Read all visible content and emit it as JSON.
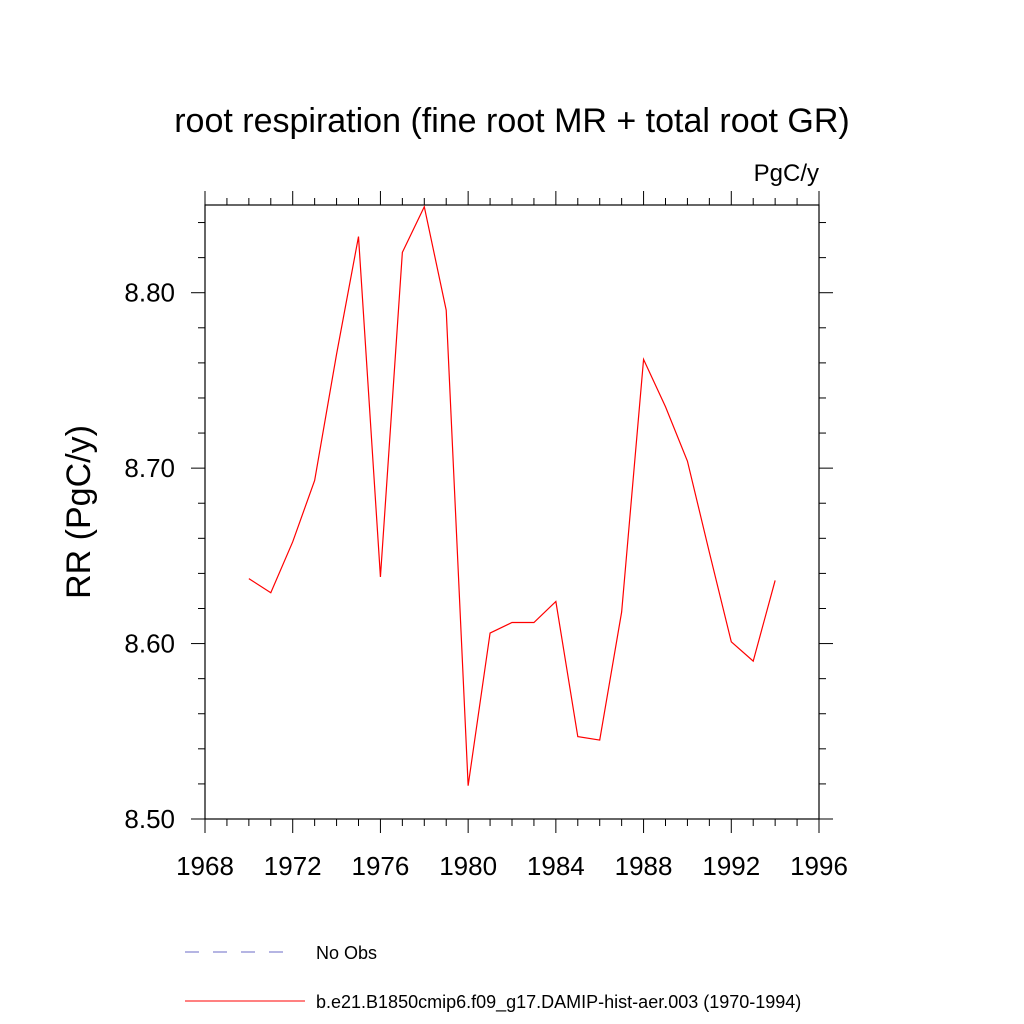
{
  "chart_data": {
    "type": "line",
    "title": "root respiration (fine root MR + total root GR)",
    "units_label": "PgC/y",
    "ylabel": "RR  (PgC/y)",
    "xlabel": "",
    "xlim": [
      1968,
      1996
    ],
    "ylim": [
      8.5,
      8.85
    ],
    "x_ticks": [
      1968,
      1972,
      1976,
      1980,
      1984,
      1988,
      1992,
      1996
    ],
    "x_tick_labels": [
      "1968",
      "1972",
      "1976",
      "1980",
      "1984",
      "1988",
      "1992",
      "1996"
    ],
    "y_ticks": [
      8.5,
      8.6,
      8.7,
      8.8
    ],
    "y_tick_labels": [
      "8.50",
      "8.60",
      "8.70",
      "8.80"
    ],
    "grid": false,
    "legend_position": "bottom",
    "series": [
      {
        "name": "b.e21.B1850cmip6.f09_g17.DAMIP-hist-aer.003 (1970-1994)",
        "color": "#ff0000",
        "style": "solid",
        "x": [
          1970,
          1971,
          1972,
          1973,
          1974,
          1975,
          1976,
          1977,
          1978,
          1979,
          1980,
          1981,
          1982,
          1983,
          1984,
          1985,
          1986,
          1987,
          1988,
          1989,
          1990,
          1991,
          1992,
          1993,
          1994
        ],
        "values": [
          8.637,
          8.629,
          8.658,
          8.693,
          8.765,
          8.832,
          8.638,
          8.823,
          8.849,
          8.79,
          8.519,
          8.606,
          8.612,
          8.612,
          8.624,
          8.547,
          8.545,
          8.618,
          8.762,
          8.735,
          8.704,
          8.652,
          8.601,
          8.59,
          8.636
        ]
      }
    ],
    "legend": [
      {
        "label": "No Obs",
        "color": "#6b6bc7",
        "style": "dashed"
      },
      {
        "label": "b.e21.B1850cmip6.f09_g17.DAMIP-hist-aer.003 (1970-1994)",
        "color": "#ff0000",
        "style": "solid"
      }
    ]
  }
}
